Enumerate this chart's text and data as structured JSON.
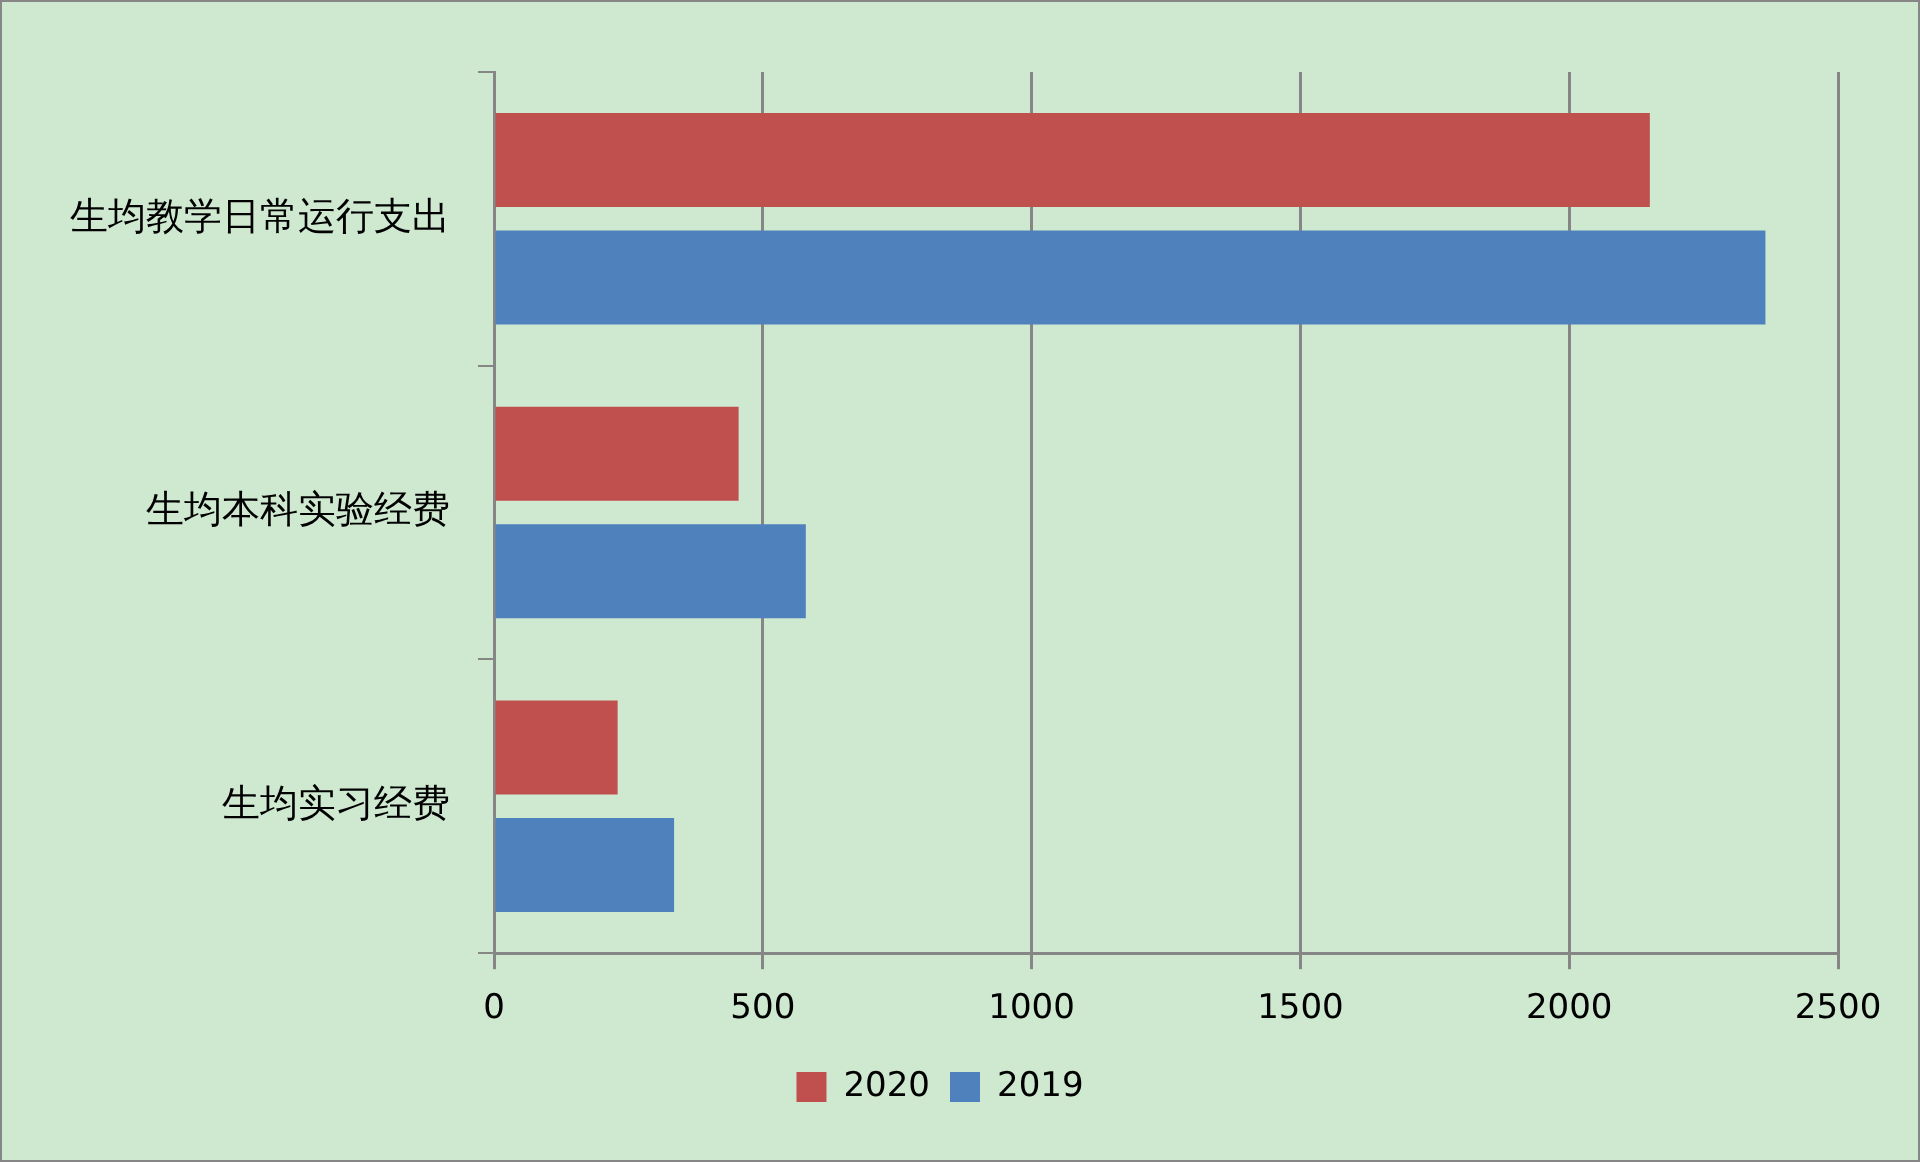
{
  "chart_data": {
    "type": "bar",
    "orientation": "horizontal",
    "categories": [
      "生均教学日常运行支出",
      "生均本科实验经费",
      "生均实习经费"
    ],
    "series": [
      {
        "name": "2020",
        "color": "#c0504d",
        "values": [
          2150,
          455,
          230
        ]
      },
      {
        "name": "2019",
        "color": "#4f81bd",
        "values": [
          2365,
          580,
          335
        ]
      }
    ],
    "xlim": [
      0,
      2500
    ],
    "xticks": [
      0,
      500,
      1000,
      1500,
      2000,
      2500
    ],
    "grid": "x",
    "legend": "bottom"
  }
}
